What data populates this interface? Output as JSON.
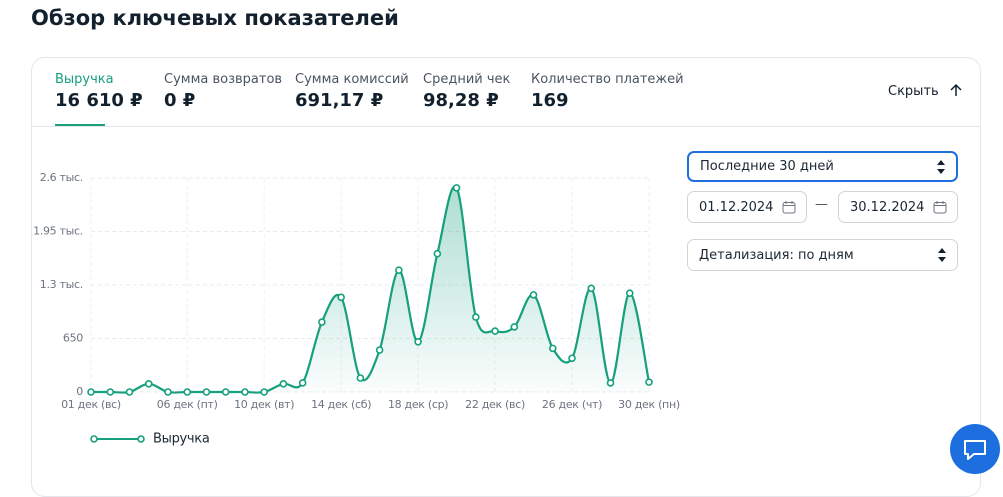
{
  "header": {
    "title": "Обзор ключевых показателей"
  },
  "tabs": [
    {
      "label": "Выручка",
      "value": "16 610 ₽"
    },
    {
      "label": "Сумма возвратов",
      "value": "0 ₽"
    },
    {
      "label": "Сумма комиссий",
      "value": "691,17 ₽"
    },
    {
      "label": "Средний чек",
      "value": "98,28 ₽"
    },
    {
      "label": "Количество платежей",
      "value": "169"
    }
  ],
  "hide_button": "Скрыть",
  "controls": {
    "period": "Последние 30 дней",
    "date_from": "01.12.2024",
    "date_separator": "—",
    "date_to": "30.12.2024",
    "detail": "Детализация: по дням"
  },
  "chart_data": {
    "type": "line",
    "categories": [
      "01 дек (вс)",
      null,
      null,
      null,
      null,
      "06 дек (пт)",
      null,
      null,
      null,
      "10 дек (вт)",
      null,
      null,
      null,
      "14 дек (сб)",
      null,
      null,
      null,
      "18 дек (ср)",
      null,
      null,
      null,
      "22 дек (вс)",
      null,
      null,
      null,
      "26 дек (чт)",
      null,
      null,
      null,
      "30 дек (пн)"
    ],
    "series": [
      {
        "name": "Выручка",
        "color": "#16a07c",
        "values": [
          0,
          0,
          0,
          100,
          0,
          0,
          0,
          0,
          0,
          0,
          100,
          110,
          850,
          1150,
          170,
          510,
          1480,
          610,
          1680,
          2480,
          910,
          740,
          790,
          1180,
          530,
          410,
          1260,
          110,
          1200,
          120
        ]
      }
    ],
    "ylim": [
      0,
      2600
    ],
    "yticks": [
      0,
      650,
      {
        "value": 1300,
        "label": "1.3 тыс."
      },
      {
        "value": 1950,
        "label": "1.95 тыс."
      },
      {
        "value": 2600,
        "label": "2.6 тыс."
      }
    ],
    "grid": true
  }
}
